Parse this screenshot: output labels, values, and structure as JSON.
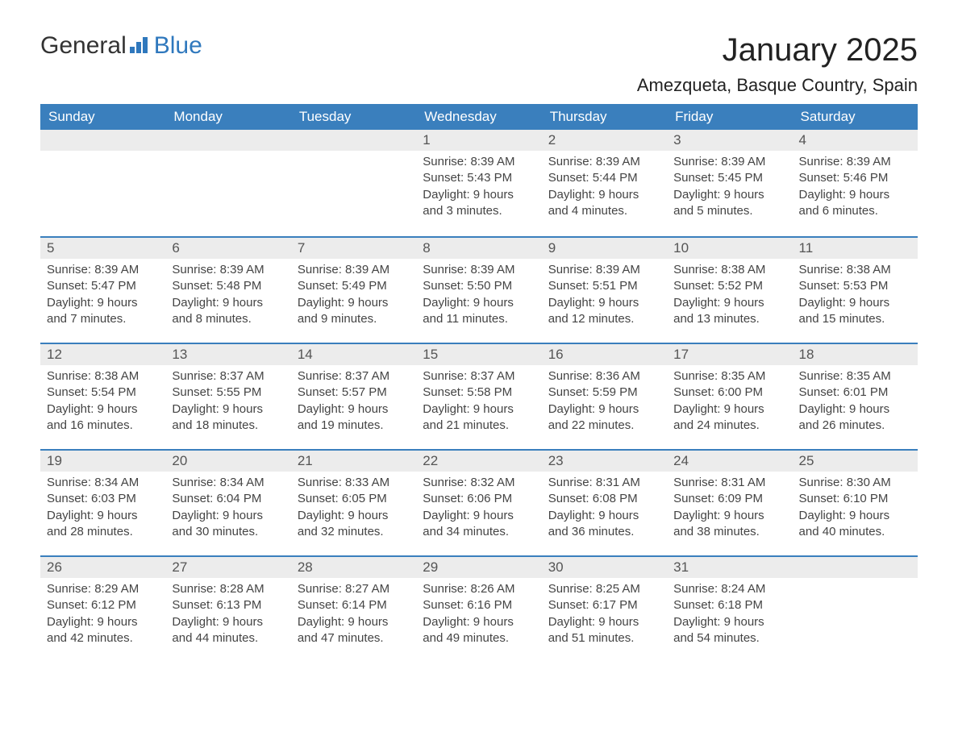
{
  "brand": {
    "part1": "General",
    "part2": "Blue"
  },
  "title": "January 2025",
  "location": "Amezqueta, Basque Country, Spain",
  "colors": {
    "header_bg": "#3a7fbd",
    "header_text": "#ffffff",
    "daynum_bg": "#ececec",
    "text": "#444444",
    "brand_blue": "#2f78bd",
    "rule": "#3a7fbd"
  },
  "typography": {
    "title_fontsize": 40,
    "location_fontsize": 22,
    "header_fontsize": 17,
    "body_fontsize": 15
  },
  "day_names": [
    "Sunday",
    "Monday",
    "Tuesday",
    "Wednesday",
    "Thursday",
    "Friday",
    "Saturday"
  ],
  "weeks": [
    [
      {
        "n": "",
        "sunrise": "",
        "sunset": "",
        "daylight": ""
      },
      {
        "n": "",
        "sunrise": "",
        "sunset": "",
        "daylight": ""
      },
      {
        "n": "",
        "sunrise": "",
        "sunset": "",
        "daylight": ""
      },
      {
        "n": "1",
        "sunrise": "Sunrise: 8:39 AM",
        "sunset": "Sunset: 5:43 PM",
        "daylight": "Daylight: 9 hours and 3 minutes."
      },
      {
        "n": "2",
        "sunrise": "Sunrise: 8:39 AM",
        "sunset": "Sunset: 5:44 PM",
        "daylight": "Daylight: 9 hours and 4 minutes."
      },
      {
        "n": "3",
        "sunrise": "Sunrise: 8:39 AM",
        "sunset": "Sunset: 5:45 PM",
        "daylight": "Daylight: 9 hours and 5 minutes."
      },
      {
        "n": "4",
        "sunrise": "Sunrise: 8:39 AM",
        "sunset": "Sunset: 5:46 PM",
        "daylight": "Daylight: 9 hours and 6 minutes."
      }
    ],
    [
      {
        "n": "5",
        "sunrise": "Sunrise: 8:39 AM",
        "sunset": "Sunset: 5:47 PM",
        "daylight": "Daylight: 9 hours and 7 minutes."
      },
      {
        "n": "6",
        "sunrise": "Sunrise: 8:39 AM",
        "sunset": "Sunset: 5:48 PM",
        "daylight": "Daylight: 9 hours and 8 minutes."
      },
      {
        "n": "7",
        "sunrise": "Sunrise: 8:39 AM",
        "sunset": "Sunset: 5:49 PM",
        "daylight": "Daylight: 9 hours and 9 minutes."
      },
      {
        "n": "8",
        "sunrise": "Sunrise: 8:39 AM",
        "sunset": "Sunset: 5:50 PM",
        "daylight": "Daylight: 9 hours and 11 minutes."
      },
      {
        "n": "9",
        "sunrise": "Sunrise: 8:39 AM",
        "sunset": "Sunset: 5:51 PM",
        "daylight": "Daylight: 9 hours and 12 minutes."
      },
      {
        "n": "10",
        "sunrise": "Sunrise: 8:38 AM",
        "sunset": "Sunset: 5:52 PM",
        "daylight": "Daylight: 9 hours and 13 minutes."
      },
      {
        "n": "11",
        "sunrise": "Sunrise: 8:38 AM",
        "sunset": "Sunset: 5:53 PM",
        "daylight": "Daylight: 9 hours and 15 minutes."
      }
    ],
    [
      {
        "n": "12",
        "sunrise": "Sunrise: 8:38 AM",
        "sunset": "Sunset: 5:54 PM",
        "daylight": "Daylight: 9 hours and 16 minutes."
      },
      {
        "n": "13",
        "sunrise": "Sunrise: 8:37 AM",
        "sunset": "Sunset: 5:55 PM",
        "daylight": "Daylight: 9 hours and 18 minutes."
      },
      {
        "n": "14",
        "sunrise": "Sunrise: 8:37 AM",
        "sunset": "Sunset: 5:57 PM",
        "daylight": "Daylight: 9 hours and 19 minutes."
      },
      {
        "n": "15",
        "sunrise": "Sunrise: 8:37 AM",
        "sunset": "Sunset: 5:58 PM",
        "daylight": "Daylight: 9 hours and 21 minutes."
      },
      {
        "n": "16",
        "sunrise": "Sunrise: 8:36 AM",
        "sunset": "Sunset: 5:59 PM",
        "daylight": "Daylight: 9 hours and 22 minutes."
      },
      {
        "n": "17",
        "sunrise": "Sunrise: 8:35 AM",
        "sunset": "Sunset: 6:00 PM",
        "daylight": "Daylight: 9 hours and 24 minutes."
      },
      {
        "n": "18",
        "sunrise": "Sunrise: 8:35 AM",
        "sunset": "Sunset: 6:01 PM",
        "daylight": "Daylight: 9 hours and 26 minutes."
      }
    ],
    [
      {
        "n": "19",
        "sunrise": "Sunrise: 8:34 AM",
        "sunset": "Sunset: 6:03 PM",
        "daylight": "Daylight: 9 hours and 28 minutes."
      },
      {
        "n": "20",
        "sunrise": "Sunrise: 8:34 AM",
        "sunset": "Sunset: 6:04 PM",
        "daylight": "Daylight: 9 hours and 30 minutes."
      },
      {
        "n": "21",
        "sunrise": "Sunrise: 8:33 AM",
        "sunset": "Sunset: 6:05 PM",
        "daylight": "Daylight: 9 hours and 32 minutes."
      },
      {
        "n": "22",
        "sunrise": "Sunrise: 8:32 AM",
        "sunset": "Sunset: 6:06 PM",
        "daylight": "Daylight: 9 hours and 34 minutes."
      },
      {
        "n": "23",
        "sunrise": "Sunrise: 8:31 AM",
        "sunset": "Sunset: 6:08 PM",
        "daylight": "Daylight: 9 hours and 36 minutes."
      },
      {
        "n": "24",
        "sunrise": "Sunrise: 8:31 AM",
        "sunset": "Sunset: 6:09 PM",
        "daylight": "Daylight: 9 hours and 38 minutes."
      },
      {
        "n": "25",
        "sunrise": "Sunrise: 8:30 AM",
        "sunset": "Sunset: 6:10 PM",
        "daylight": "Daylight: 9 hours and 40 minutes."
      }
    ],
    [
      {
        "n": "26",
        "sunrise": "Sunrise: 8:29 AM",
        "sunset": "Sunset: 6:12 PM",
        "daylight": "Daylight: 9 hours and 42 minutes."
      },
      {
        "n": "27",
        "sunrise": "Sunrise: 8:28 AM",
        "sunset": "Sunset: 6:13 PM",
        "daylight": "Daylight: 9 hours and 44 minutes."
      },
      {
        "n": "28",
        "sunrise": "Sunrise: 8:27 AM",
        "sunset": "Sunset: 6:14 PM",
        "daylight": "Daylight: 9 hours and 47 minutes."
      },
      {
        "n": "29",
        "sunrise": "Sunrise: 8:26 AM",
        "sunset": "Sunset: 6:16 PM",
        "daylight": "Daylight: 9 hours and 49 minutes."
      },
      {
        "n": "30",
        "sunrise": "Sunrise: 8:25 AM",
        "sunset": "Sunset: 6:17 PM",
        "daylight": "Daylight: 9 hours and 51 minutes."
      },
      {
        "n": "31",
        "sunrise": "Sunrise: 8:24 AM",
        "sunset": "Sunset: 6:18 PM",
        "daylight": "Daylight: 9 hours and 54 minutes."
      },
      {
        "n": "",
        "sunrise": "",
        "sunset": "",
        "daylight": ""
      }
    ]
  ]
}
